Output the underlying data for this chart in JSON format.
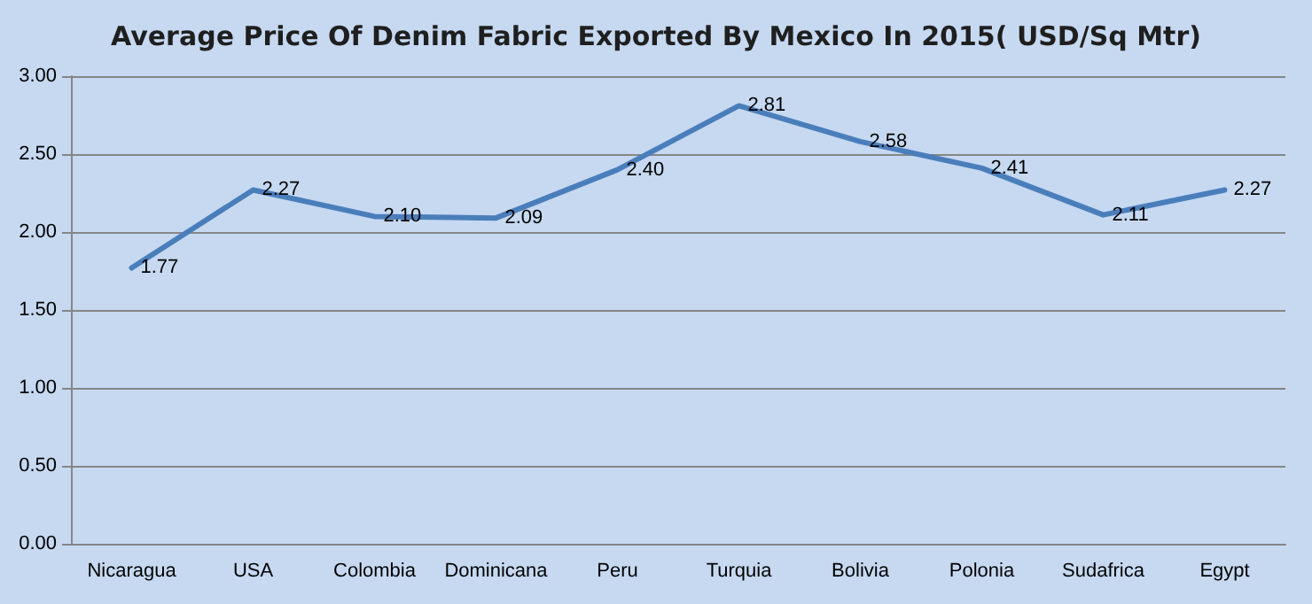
{
  "chart_data": {
    "type": "line",
    "title": "Average Price Of Denim Fabric Exported By Mexico In 2015( USD/Sq Mtr)",
    "categories": [
      "Nicaragua",
      "USA",
      "Colombia",
      "Dominicana",
      "Peru",
      "Turquia",
      "Bolivia",
      "Polonia",
      "Sudafrica",
      "Egypt"
    ],
    "series": [
      {
        "color": "#4a7ebb",
        "values": [
          1.77,
          2.27,
          2.1,
          2.09,
          2.4,
          2.81,
          2.58,
          2.41,
          2.11,
          2.27
        ],
        "value_labels": [
          "1.77",
          "2.27",
          "2.10",
          "2.09",
          "2.40",
          "2.81",
          "2.58",
          "2.41",
          "2.11",
          "2.27"
        ]
      }
    ],
    "ylim": [
      0,
      3
    ],
    "yticks": [
      {
        "value": 0,
        "label": "0.00"
      },
      {
        "value": 0.5,
        "label": "0.50"
      },
      {
        "value": 1,
        "label": "1.00"
      },
      {
        "value": 1.5,
        "label": "1.50"
      },
      {
        "value": 2,
        "label": "2.00"
      },
      {
        "value": 2.5,
        "label": "2.50"
      },
      {
        "value": 3,
        "label": "3.00"
      }
    ],
    "grid": "y",
    "marker": "none",
    "line_style": "solid"
  }
}
